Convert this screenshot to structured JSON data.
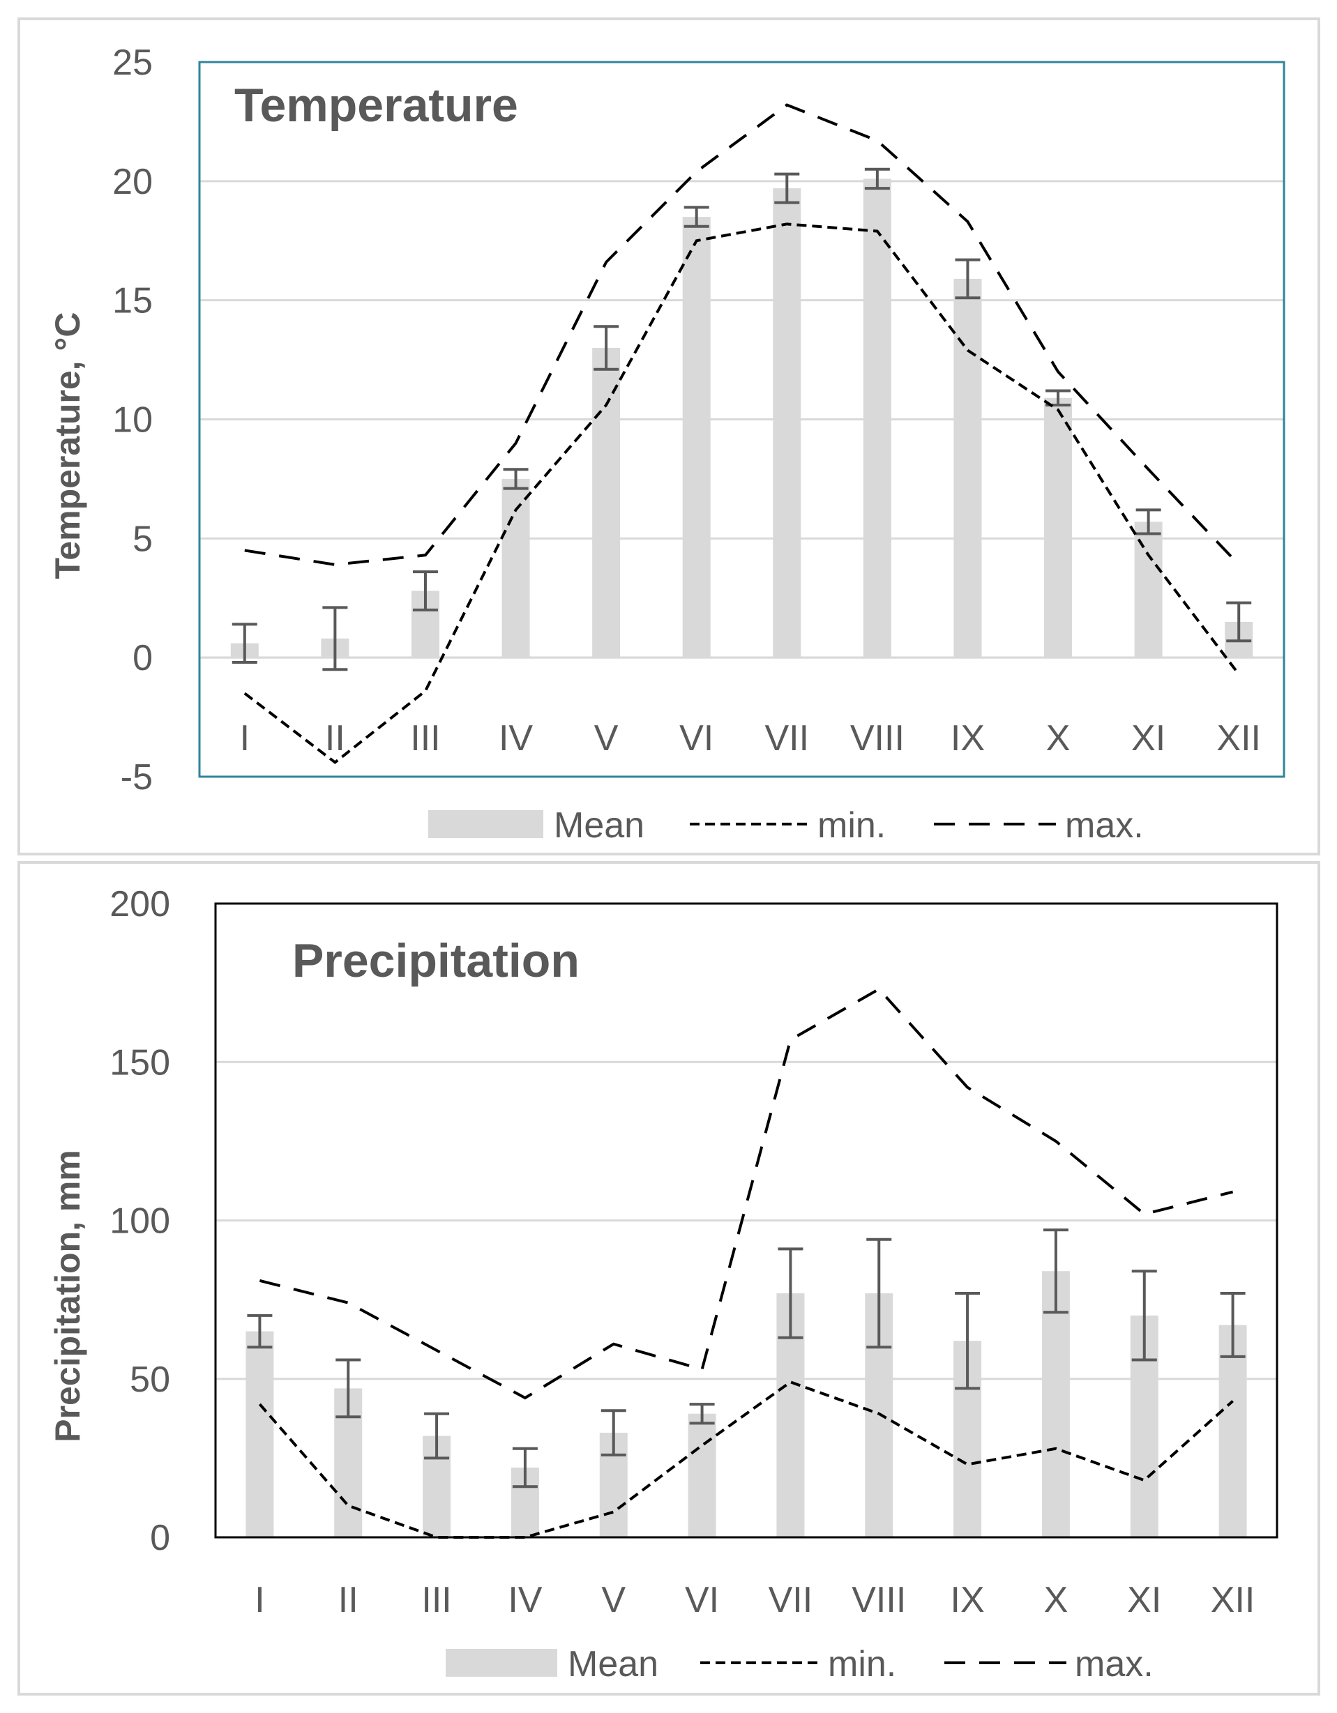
{
  "chart_data": [
    {
      "type": "bar",
      "title": "Temperature",
      "ylabel": "Temperature, °C",
      "xlabel": "",
      "ylim": [
        -5,
        25
      ],
      "yticks": [
        25,
        20,
        15,
        10,
        5,
        0,
        -5
      ],
      "categories": [
        "I",
        "II",
        "III",
        "IV",
        "V",
        "VI",
        "VII",
        "VIII",
        "IX",
        "X",
        "XI",
        "XII"
      ],
      "series": [
        {
          "name": "Mean",
          "kind": "bar",
          "values": [
            0.6,
            0.8,
            2.8,
            7.5,
            13.0,
            18.5,
            19.7,
            20.1,
            15.9,
            10.9,
            5.7,
            1.5
          ],
          "error": [
            0.8,
            1.3,
            0.8,
            0.4,
            0.9,
            0.4,
            0.6,
            0.4,
            0.8,
            0.3,
            0.5,
            0.8
          ]
        },
        {
          "name": "min.",
          "kind": "line",
          "dash": "short",
          "values": [
            -1.5,
            -4.4,
            -1.4,
            6.2,
            10.6,
            17.5,
            18.2,
            17.9,
            12.9,
            10.4,
            4.3,
            -0.7
          ]
        },
        {
          "name": "max.",
          "kind": "line",
          "dash": "long",
          "values": [
            4.5,
            3.9,
            4.3,
            9.0,
            16.6,
            20.4,
            23.2,
            21.7,
            18.3,
            12.0,
            7.9,
            3.9
          ]
        }
      ],
      "legend": [
        "Mean",
        "min.",
        "max."
      ],
      "legend_position": "bottom"
    },
    {
      "type": "bar",
      "title": "Precipitation",
      "ylabel": "Precipitation, mm",
      "xlabel": "",
      "ylim": [
        0,
        200
      ],
      "yticks": [
        200,
        150,
        100,
        50,
        0
      ],
      "categories": [
        "I",
        "II",
        "III",
        "IV",
        "V",
        "VI",
        "VII",
        "VIII",
        "IX",
        "X",
        "XI",
        "XII"
      ],
      "series": [
        {
          "name": "Mean",
          "kind": "bar",
          "values": [
            65,
            47,
            32,
            22,
            33,
            39,
            77,
            77,
            62,
            84,
            70,
            67
          ],
          "error": [
            5,
            9,
            7,
            6,
            7,
            3,
            14,
            17,
            15,
            13,
            14,
            10
          ]
        },
        {
          "name": "min.",
          "kind": "line",
          "dash": "short",
          "values": [
            42,
            10,
            0,
            0,
            8,
            29,
            49,
            39,
            23,
            28,
            18,
            43
          ]
        },
        {
          "name": "max.",
          "kind": "line",
          "dash": "long",
          "values": [
            81,
            74,
            59,
            44,
            61,
            53,
            157,
            173,
            142,
            125,
            102,
            109
          ]
        }
      ],
      "legend": [
        "Mean",
        "min.",
        "max."
      ],
      "legend_position": "bottom"
    }
  ]
}
